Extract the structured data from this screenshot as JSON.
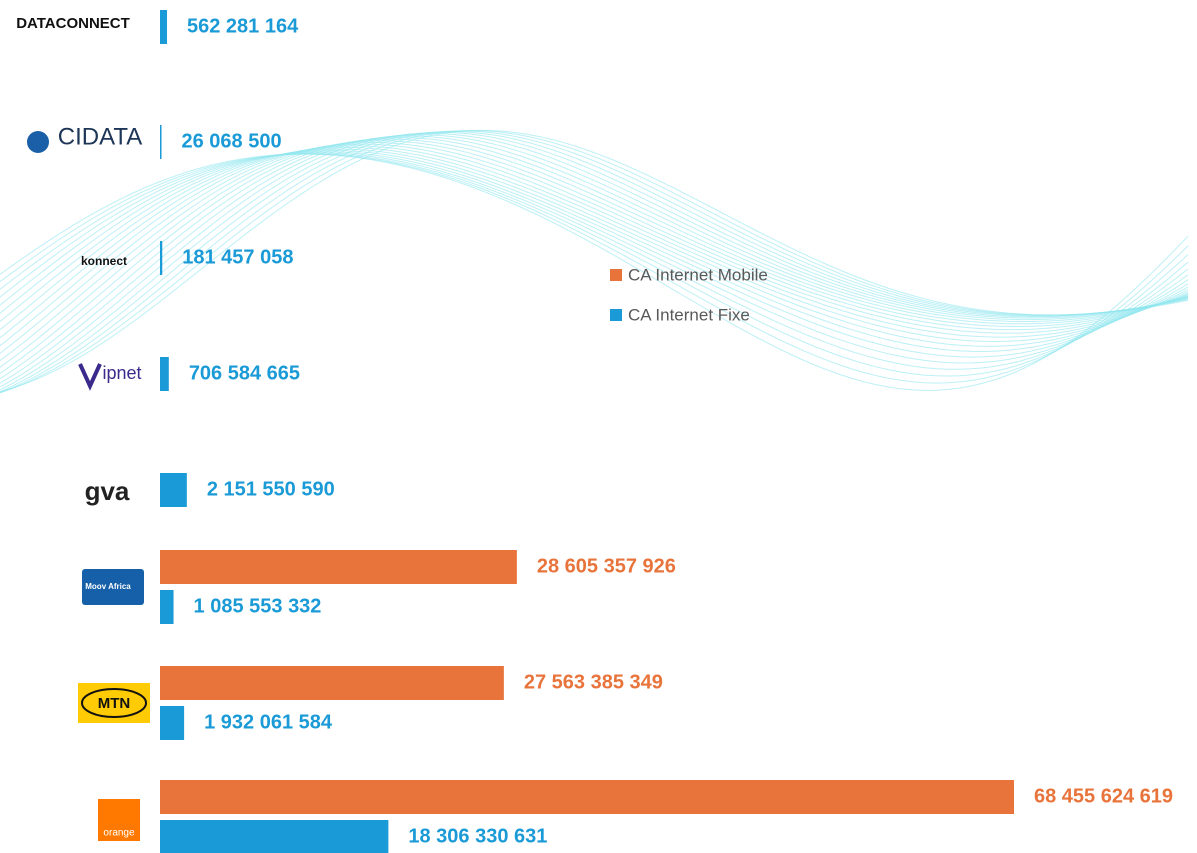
{
  "chart_data": {
    "type": "bar",
    "orientation": "horizontal",
    "categories": [
      "DATACONNECT",
      "CIDATA",
      "konnect",
      "ipnet",
      "gva",
      "Moov Africa",
      "MTN",
      "orange"
    ],
    "series": [
      {
        "name": "CA Internet Mobile",
        "color": "#e8743b",
        "values": [
          null,
          null,
          null,
          null,
          null,
          28605357926,
          27563385349,
          68455624619
        ],
        "value_labels": [
          null,
          null,
          null,
          null,
          null,
          "28 605 357 926",
          "27 563 385 349",
          "68 455 624 619"
        ]
      },
      {
        "name": "CA Internet Fixe",
        "color": "#1a9ad6",
        "values": [
          562281164,
          26068500,
          181457058,
          706584665,
          2151550590,
          1085553332,
          1932061584,
          18306330631
        ],
        "value_labels": [
          "562 281 164",
          "26 068 500",
          "181 457 058",
          "706 584 665",
          "2 151 550 590",
          "1 085 553 332",
          "1 932 061 584",
          "18 306 330 631"
        ]
      }
    ]
  }
}
